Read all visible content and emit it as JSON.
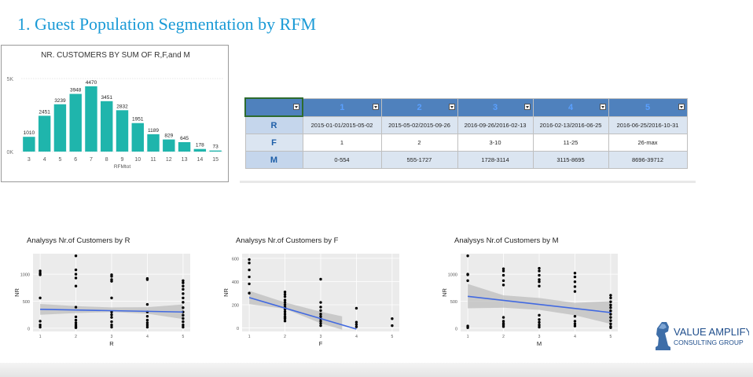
{
  "title": "1. Guest Population Segmentation by RFM",
  "colors": {
    "title": "#1a9ad6",
    "bar": "#1fb5ac",
    "table_header": "#4f81bd",
    "table_label": "#1f5fa8",
    "regression_line": "#4169e1",
    "scatter_point": "#000000"
  },
  "chart_data": [
    {
      "type": "bar",
      "title": "NR. CUSTOMERS BY SUM OF R,F,and M",
      "xlabel": "RFMtot",
      "ylabel": "",
      "categories": [
        "3",
        "4",
        "5",
        "6",
        "7",
        "8",
        "9",
        "10",
        "11",
        "12",
        "13",
        "14",
        "15"
      ],
      "values": [
        1010,
        2451,
        3239,
        3948,
        4470,
        3451,
        2832,
        1951,
        1189,
        829,
        645,
        178,
        73
      ],
      "data_labels": [
        "1010",
        "2451",
        "3239",
        "3948",
        "4470",
        "3451",
        "2832",
        "1951",
        "1189",
        "829",
        "645",
        "178",
        "73"
      ],
      "yticks": [
        "5K",
        "0K"
      ],
      "ylim": [
        0,
        5000
      ],
      "grid": true
    },
    {
      "type": "scatter",
      "title": "Analysys Nr.of Customers by R",
      "xlabel": "R",
      "ylabel": "NR",
      "xticks": [
        "1",
        "2",
        "3",
        "4",
        "5"
      ],
      "yticks": [
        "0",
        "500",
        "1000"
      ],
      "xlim": [
        0.8,
        5.2
      ],
      "ylim": [
        -60,
        1380
      ],
      "points": [
        [
          1,
          1060
        ],
        [
          1,
          1020
        ],
        [
          1,
          990
        ],
        [
          1,
          560
        ],
        [
          1,
          130
        ],
        [
          1,
          60
        ],
        [
          1,
          20
        ],
        [
          2,
          1340
        ],
        [
          2,
          1080
        ],
        [
          2,
          1000
        ],
        [
          2,
          930
        ],
        [
          2,
          780
        ],
        [
          2,
          390
        ],
        [
          2,
          210
        ],
        [
          2,
          150
        ],
        [
          2,
          100
        ],
        [
          2,
          60
        ],
        [
          2,
          30
        ],
        [
          2,
          10
        ],
        [
          3,
          990
        ],
        [
          3,
          960
        ],
        [
          3,
          900
        ],
        [
          3,
          870
        ],
        [
          3,
          560
        ],
        [
          3,
          300
        ],
        [
          3,
          250
        ],
        [
          3,
          200
        ],
        [
          3,
          120
        ],
        [
          3,
          60
        ],
        [
          3,
          20
        ],
        [
          4,
          920
        ],
        [
          4,
          900
        ],
        [
          4,
          440
        ],
        [
          4,
          300
        ],
        [
          4,
          220
        ],
        [
          4,
          150
        ],
        [
          4,
          100
        ],
        [
          4,
          60
        ],
        [
          4,
          20
        ],
        [
          5,
          880
        ],
        [
          5,
          840
        ],
        [
          5,
          780
        ],
        [
          5,
          720
        ],
        [
          5,
          640
        ],
        [
          5,
          560
        ],
        [
          5,
          480
        ],
        [
          5,
          380
        ],
        [
          5,
          300
        ],
        [
          5,
          240
        ],
        [
          5,
          180
        ],
        [
          5,
          120
        ],
        [
          5,
          60
        ],
        [
          5,
          20
        ]
      ],
      "fit": {
        "x": [
          1,
          5
        ],
        "y": [
          350,
          300
        ]
      },
      "band": {
        "x": [
          1,
          2,
          3,
          4,
          5
        ],
        "upper": [
          450,
          410,
          385,
          390,
          440
        ],
        "lower": [
          250,
          280,
          300,
          270,
          170
        ]
      }
    },
    {
      "type": "scatter",
      "title": "Analysys Nr.of Customers by F",
      "xlabel": "F",
      "ylabel": "NR",
      "xticks": [
        "1",
        "2",
        "3",
        "4",
        "5"
      ],
      "yticks": [
        "0",
        "200",
        "400",
        "600"
      ],
      "xlim": [
        0.8,
        5.2
      ],
      "ylim": [
        -30,
        640
      ],
      "points": [
        [
          1,
          590
        ],
        [
          1,
          560
        ],
        [
          1,
          500
        ],
        [
          1,
          440
        ],
        [
          1,
          380
        ],
        [
          1,
          300
        ],
        [
          2,
          310
        ],
        [
          2,
          290
        ],
        [
          2,
          270
        ],
        [
          2,
          240
        ],
        [
          2,
          220
        ],
        [
          2,
          200
        ],
        [
          2,
          180
        ],
        [
          2,
          160
        ],
        [
          2,
          140
        ],
        [
          2,
          120
        ],
        [
          2,
          100
        ],
        [
          2,
          90
        ],
        [
          2,
          80
        ],
        [
          2,
          60
        ],
        [
          3,
          420
        ],
        [
          3,
          220
        ],
        [
          3,
          180
        ],
        [
          3,
          150
        ],
        [
          3,
          120
        ],
        [
          3,
          100
        ],
        [
          3,
          80
        ],
        [
          3,
          60
        ],
        [
          3,
          40
        ],
        [
          3,
          20
        ],
        [
          4,
          170
        ],
        [
          4,
          50
        ],
        [
          4,
          30
        ],
        [
          4,
          10
        ],
        [
          5,
          80
        ],
        [
          5,
          20
        ]
      ],
      "fit": {
        "x": [
          1,
          4
        ],
        "y": [
          262,
          -10
        ]
      },
      "band": {
        "x": [
          1,
          2,
          3,
          3.6
        ],
        "upper": [
          320,
          220,
          140,
          100
        ],
        "lower": [
          205,
          165,
          40,
          -15
        ]
      }
    },
    {
      "type": "scatter",
      "title": "Analysys Nr.of Customers by M",
      "xlabel": "M",
      "ylabel": "NR",
      "xticks": [
        "1",
        "2",
        "3",
        "4",
        "5"
      ],
      "yticks": [
        "0",
        "500",
        "1000"
      ],
      "xlim": [
        0.8,
        5.2
      ],
      "ylim": [
        -60,
        1380
      ],
      "points": [
        [
          1,
          1340
        ],
        [
          1,
          1000
        ],
        [
          1,
          990
        ],
        [
          1,
          880
        ],
        [
          1,
          40
        ],
        [
          1,
          10
        ],
        [
          2,
          1100
        ],
        [
          2,
          1060
        ],
        [
          2,
          980
        ],
        [
          2,
          880
        ],
        [
          2,
          800
        ],
        [
          2,
          200
        ],
        [
          2,
          130
        ],
        [
          2,
          90
        ],
        [
          2,
          60
        ],
        [
          2,
          30
        ],
        [
          3,
          1110
        ],
        [
          3,
          1060
        ],
        [
          3,
          980
        ],
        [
          3,
          900
        ],
        [
          3,
          860
        ],
        [
          3,
          780
        ],
        [
          3,
          240
        ],
        [
          3,
          160
        ],
        [
          3,
          110
        ],
        [
          3,
          60
        ],
        [
          3,
          20
        ],
        [
          4,
          1020
        ],
        [
          4,
          950
        ],
        [
          4,
          860
        ],
        [
          4,
          770
        ],
        [
          4,
          680
        ],
        [
          4,
          220
        ],
        [
          4,
          130
        ],
        [
          4,
          80
        ],
        [
          4,
          40
        ],
        [
          5,
          610
        ],
        [
          5,
          560
        ],
        [
          5,
          490
        ],
        [
          5,
          430
        ],
        [
          5,
          380
        ],
        [
          5,
          320
        ],
        [
          5,
          260
        ],
        [
          5,
          200
        ],
        [
          5,
          140
        ],
        [
          5,
          80
        ],
        [
          5,
          30
        ],
        [
          5,
          10
        ]
      ],
      "fit": {
        "x": [
          1,
          5
        ],
        "y": [
          590,
          290
        ]
      },
      "band": {
        "x": [
          1,
          2,
          3,
          4,
          5
        ],
        "upper": [
          820,
          610,
          560,
          470,
          500
        ],
        "lower": [
          370,
          380,
          340,
          240,
          80
        ]
      }
    }
  ],
  "table": {
    "header": [
      "",
      "1",
      "2",
      "3",
      "4",
      "5"
    ],
    "rows": [
      {
        "label": "R",
        "cells": [
          "2015-01-01/2015-05-02",
          "2015-05-02/2015-09-26",
          "2016-09-26/2016-02-13",
          "2016-02-13/2016-06-25",
          "2016-06-25/2016-10-31"
        ]
      },
      {
        "label": "F",
        "cells": [
          "1",
          "2",
          "3-10",
          "11-25",
          "26-max"
        ]
      },
      {
        "label": "M",
        "cells": [
          "0-554",
          "555-1727",
          "1728-3114",
          "3115-8695",
          "8696-39712"
        ]
      }
    ]
  },
  "logo": {
    "line1": "VALUE AMPLIFY",
    "line2": "CONSULTING GROUP",
    "icon": "chess-knight-icon"
  }
}
